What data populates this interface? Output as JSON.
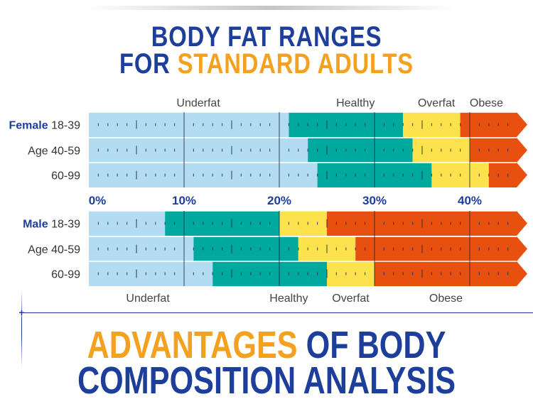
{
  "header": {
    "title_line1": "BODY FAT RANGES",
    "title_line2_part1": "FOR ",
    "title_line2_part2": "STANDARD ADULTS"
  },
  "footer": {
    "title_line1_part1": "ADVANTAGES",
    "title_line1_part2": " OF BODY",
    "title_line2": "COMPOSITION ANALYSIS"
  },
  "colors": {
    "underfat": "#b3dcf3",
    "healthy": "#00a99d",
    "overfat": "#fce34e",
    "obese": "#e8500f",
    "blue": "#1d3f9b",
    "orange": "#f3a11f"
  },
  "chart_data": {
    "type": "bar",
    "orientation": "horizontal-stacked-ranges",
    "x_axis": {
      "ticks": [
        "0%",
        "10%",
        "20%",
        "30%",
        "40%"
      ],
      "tick_values": [
        0,
        10,
        20,
        30,
        40
      ],
      "range": [
        0,
        46
      ]
    },
    "categories": [
      "Underfat",
      "Healthy",
      "Overfat",
      "Obese"
    ],
    "female": {
      "category_labels_top": [
        "Underfat",
        "Healthy",
        "Overfat",
        "Obese"
      ],
      "rows": [
        {
          "label_bold": "Female",
          "label": "18-39",
          "bounds": [
            21,
            33,
            39
          ]
        },
        {
          "label_bold": "",
          "label": "Age 40-59",
          "bounds": [
            23,
            34,
            40
          ]
        },
        {
          "label_bold": "",
          "label": "60-99",
          "bounds": [
            24,
            36,
            42
          ]
        }
      ]
    },
    "male": {
      "category_labels_bottom": [
        "Underfat",
        "Healthy",
        "Overfat",
        "Obese"
      ],
      "rows": [
        {
          "label_bold": "Male",
          "label": "18-39",
          "bounds": [
            8,
            20,
            25
          ]
        },
        {
          "label_bold": "",
          "label": "Age 40-59",
          "bounds": [
            11,
            22,
            28
          ]
        },
        {
          "label_bold": "",
          "label": "60-99",
          "bounds": [
            13,
            25,
            30
          ]
        }
      ]
    }
  }
}
